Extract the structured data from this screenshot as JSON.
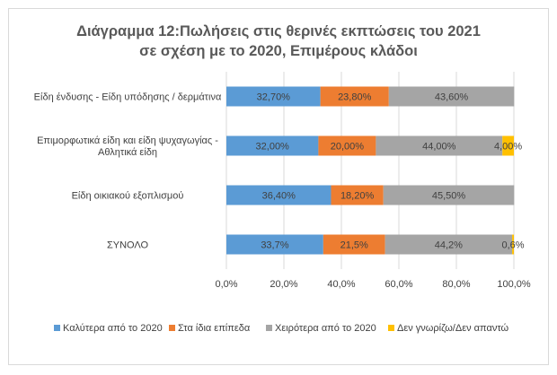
{
  "chart_data": {
    "type": "bar",
    "orientation": "horizontal",
    "stacked": "percent",
    "title": "Διάγραμμα 12:Πωλήσεις στις θερινές εκπτώσεις του 2021 σε σχέση με το 2020, Επιμέρους κλάδοι",
    "title_lines": [
      "Διάγραμμα 12:Πωλήσεις στις θερινές εκπτώσεις του 2021",
      "σε σχέση με το 2020, Επιμέρους κλάδοι"
    ],
    "categories": [
      [
        "Είδη ένδυσης - Είδη υπόδησης / δερμάτινα"
      ],
      [
        "Επιμορφωτικά είδη και είδη ψυχαγωγίας -",
        "Αθλητικά είδη"
      ],
      [
        "Είδη οικιακού εξοπλισμού"
      ],
      [
        "ΣΥΝΟΛΟ"
      ]
    ],
    "series": [
      {
        "name": "Καλύτερα από το 2020",
        "color": "#5b9bd5",
        "values": [
          32.7,
          32.0,
          36.4,
          33.7
        ],
        "labels": [
          "32,70%",
          "32,00%",
          "36,40%",
          "33,7%"
        ]
      },
      {
        "name": "Στα ίδια επίπεδα",
        "color": "#ed7d31",
        "values": [
          23.8,
          20.0,
          18.2,
          21.5
        ],
        "labels": [
          "23,80%",
          "20,00%",
          "18,20%",
          "21,5%"
        ]
      },
      {
        "name": "Χειρότερα από το 2020",
        "color": "#a5a5a5",
        "values": [
          43.6,
          44.0,
          45.5,
          44.2
        ],
        "labels": [
          "43,60%",
          "44,00%",
          "45,50%",
          "44,2%"
        ]
      },
      {
        "name": "Δεν γνωρίζω/Δεν απαντώ",
        "color": "#ffc000",
        "values": [
          0,
          4.0,
          0,
          0.6
        ],
        "labels": [
          "",
          "4,00%",
          "",
          "0,6%"
        ]
      }
    ],
    "xlim": [
      0,
      100
    ],
    "xticks": [
      "0,0%",
      "20,0%",
      "40,0%",
      "60,0%",
      "80,0%",
      "100,0%"
    ],
    "grid": true,
    "legend": "bottom"
  }
}
